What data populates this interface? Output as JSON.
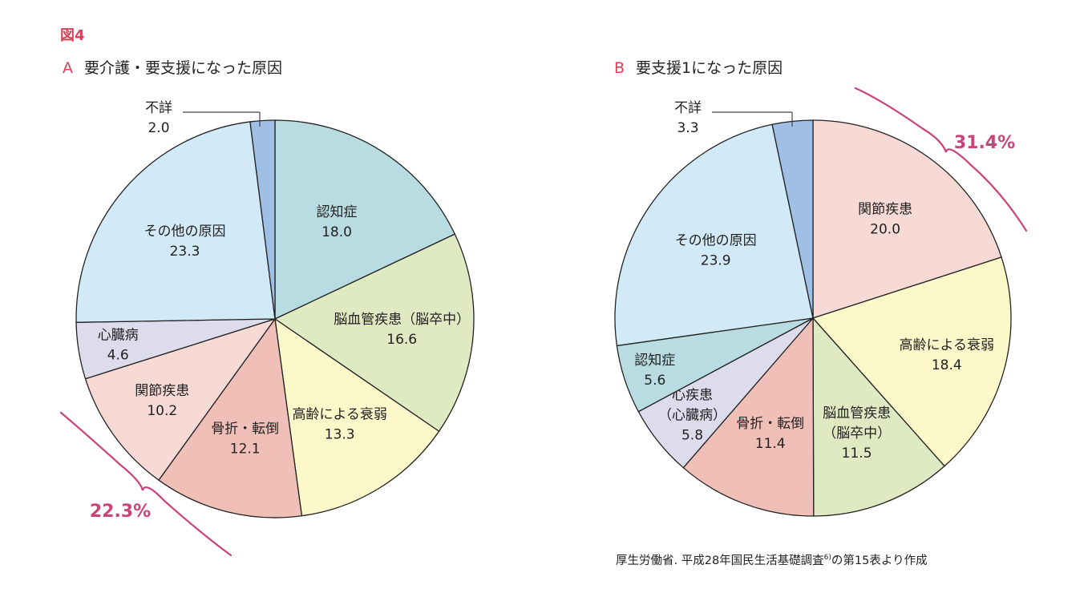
{
  "figure_label": "図4",
  "source": {
    "text": "厚生労働省. 平成28年国民生活基礎調査",
    "superscript": "6)",
    "suffix": "の第15表より作成"
  },
  "chart_data": [
    {
      "type": "pie",
      "letter": "A",
      "title": "要介護・要支援になった原因",
      "slices": [
        {
          "lines": [
            "認知症"
          ],
          "value": 18.0,
          "value_label": "18.0",
          "color": "#b8dce2"
        },
        {
          "lines": [
            "脳血管疾患（脳卒中）"
          ],
          "value": 16.6,
          "value_label": "16.6",
          "color": "#dfeac3"
        },
        {
          "lines": [
            "高齢による衰弱"
          ],
          "value": 13.3,
          "value_label": "13.3",
          "color": "#fdf8c9"
        },
        {
          "lines": [
            "骨折・転倒"
          ],
          "value": 12.1,
          "value_label": "12.1",
          "color": "#f0bfb8"
        },
        {
          "lines": [
            "関節疾患"
          ],
          "value": 10.2,
          "value_label": "10.2",
          "color": "#f7d9d6"
        },
        {
          "lines": [
            "心臓病"
          ],
          "value": 4.6,
          "value_label": "4.6",
          "color": "#dcdced"
        },
        {
          "lines": [
            "その他の原因"
          ],
          "value": 23.3,
          "value_label": "23.3",
          "color": "#d2eaf7"
        },
        {
          "lines": [
            "不詳"
          ],
          "value": 2.0,
          "value_label": "2.0",
          "color": "#9fbfe4"
        }
      ],
      "annotation": "22.3%"
    },
    {
      "type": "pie",
      "letter": "B",
      "title": "要支援1になった原因",
      "slices": [
        {
          "lines": [
            "関節疾患"
          ],
          "value": 20.0,
          "value_label": "20.0",
          "color": "#f7d9d6"
        },
        {
          "lines": [
            "高齢による衰弱"
          ],
          "value": 18.4,
          "value_label": "18.4",
          "color": "#fdf8c9"
        },
        {
          "lines": [
            "脳血管疾患",
            "（脳卒中）"
          ],
          "value": 11.5,
          "value_label": "11.5",
          "color": "#dfeac3"
        },
        {
          "lines": [
            "骨折・転倒"
          ],
          "value": 11.4,
          "value_label": "11.4",
          "color": "#f0bfb8"
        },
        {
          "lines": [
            "心疾患",
            "（心臓病）"
          ],
          "value": 5.8,
          "value_label": "5.8",
          "color": "#dcdced"
        },
        {
          "lines": [
            "認知症"
          ],
          "value": 5.6,
          "value_label": "5.6",
          "color": "#b8dce2"
        },
        {
          "lines": [
            "その他の原因"
          ],
          "value": 23.9,
          "value_label": "23.9",
          "color": "#d2eaf7"
        },
        {
          "lines": [
            "不詳"
          ],
          "value": 3.3,
          "value_label": "3.3",
          "color": "#9fbfe4"
        }
      ],
      "annotation": "31.4%"
    }
  ]
}
